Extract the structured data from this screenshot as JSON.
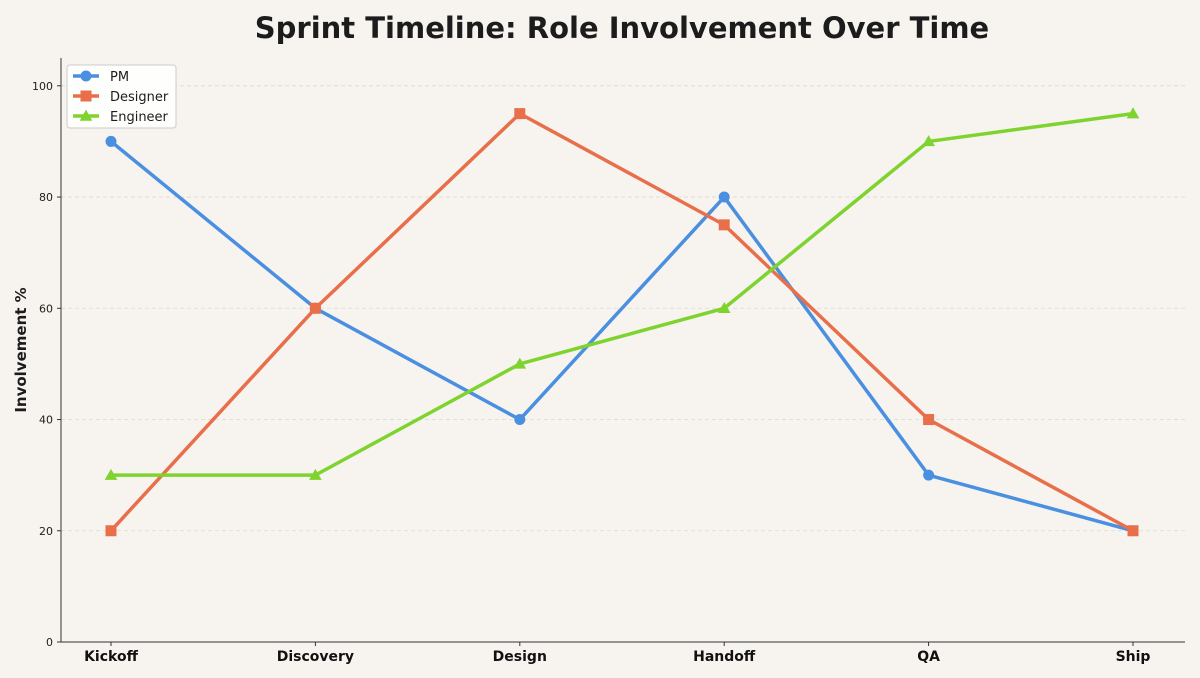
{
  "chart_data": {
    "type": "line",
    "title": "Sprint Timeline: Role Involvement Over Time",
    "xlabel": "",
    "ylabel": "Involvement %",
    "categories": [
      "Kickoff",
      "Discovery",
      "Design",
      "Handoff",
      "QA",
      "Ship"
    ],
    "ylim": [
      0,
      105
    ],
    "yticks": [
      0,
      20,
      40,
      60,
      80,
      100
    ],
    "grid": true,
    "legend_position": "top-left",
    "series": [
      {
        "name": "PM",
        "values": [
          90,
          60,
          40,
          80,
          30,
          20
        ],
        "color": "#4a8fe0",
        "marker": "circle"
      },
      {
        "name": "Designer",
        "values": [
          20,
          60,
          95,
          75,
          40,
          20
        ],
        "color": "#e86f4a",
        "marker": "square"
      },
      {
        "name": "Engineer",
        "values": [
          30,
          30,
          50,
          60,
          90,
          95
        ],
        "color": "#7ed32e",
        "marker": "triangle"
      }
    ]
  }
}
